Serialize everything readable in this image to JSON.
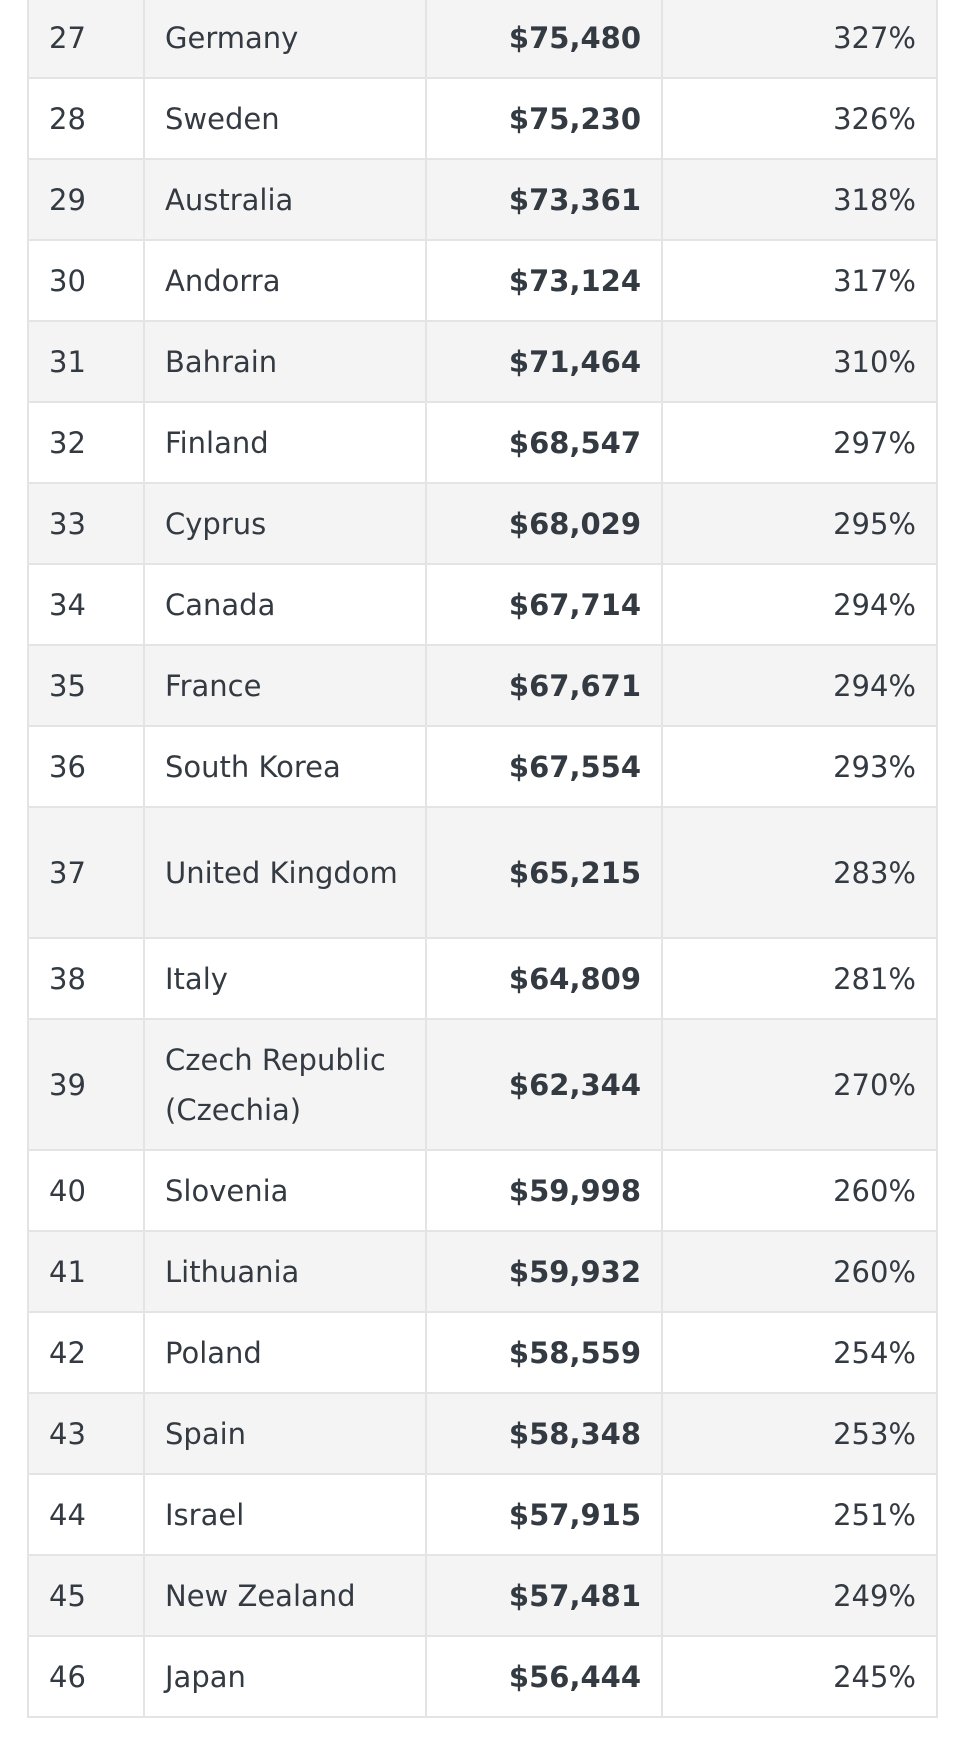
{
  "rows": [
    {
      "rank": "27",
      "country": "Germany",
      "amount": "$75,480",
      "percent": "327%"
    },
    {
      "rank": "28",
      "country": "Sweden",
      "amount": "$75,230",
      "percent": "326%"
    },
    {
      "rank": "29",
      "country": "Australia",
      "amount": "$73,361",
      "percent": "318%"
    },
    {
      "rank": "30",
      "country": "Andorra",
      "amount": "$73,124",
      "percent": "317%"
    },
    {
      "rank": "31",
      "country": "Bahrain",
      "amount": "$71,464",
      "percent": "310%"
    },
    {
      "rank": "32",
      "country": "Finland",
      "amount": "$68,547",
      "percent": "297%"
    },
    {
      "rank": "33",
      "country": "Cyprus",
      "amount": "$68,029",
      "percent": "295%"
    },
    {
      "rank": "34",
      "country": "Canada",
      "amount": "$67,714",
      "percent": "294%"
    },
    {
      "rank": "35",
      "country": "France",
      "amount": "$67,671",
      "percent": "294%"
    },
    {
      "rank": "36",
      "country": "South Korea",
      "amount": "$67,554",
      "percent": "293%"
    },
    {
      "rank": "37",
      "country": "United Kingdom",
      "amount": "$65,215",
      "percent": "283%"
    },
    {
      "rank": "38",
      "country": "Italy",
      "amount": "$64,809",
      "percent": "281%"
    },
    {
      "rank": "39",
      "country": "Czech Republic (Czechia)",
      "amount": "$62,344",
      "percent": "270%"
    },
    {
      "rank": "40",
      "country": "Slovenia",
      "amount": "$59,998",
      "percent": "260%"
    },
    {
      "rank": "41",
      "country": "Lithuania",
      "amount": "$59,932",
      "percent": "260%"
    },
    {
      "rank": "42",
      "country": "Poland",
      "amount": "$58,559",
      "percent": "254%"
    },
    {
      "rank": "43",
      "country": "Spain",
      "amount": "$58,348",
      "percent": "253%"
    },
    {
      "rank": "44",
      "country": "Israel",
      "amount": "$57,915",
      "percent": "251%"
    },
    {
      "rank": "45",
      "country": "New Zealand",
      "amount": "$57,481",
      "percent": "249%"
    },
    {
      "rank": "46",
      "country": "Japan",
      "amount": "$56,444",
      "percent": "245%"
    }
  ]
}
